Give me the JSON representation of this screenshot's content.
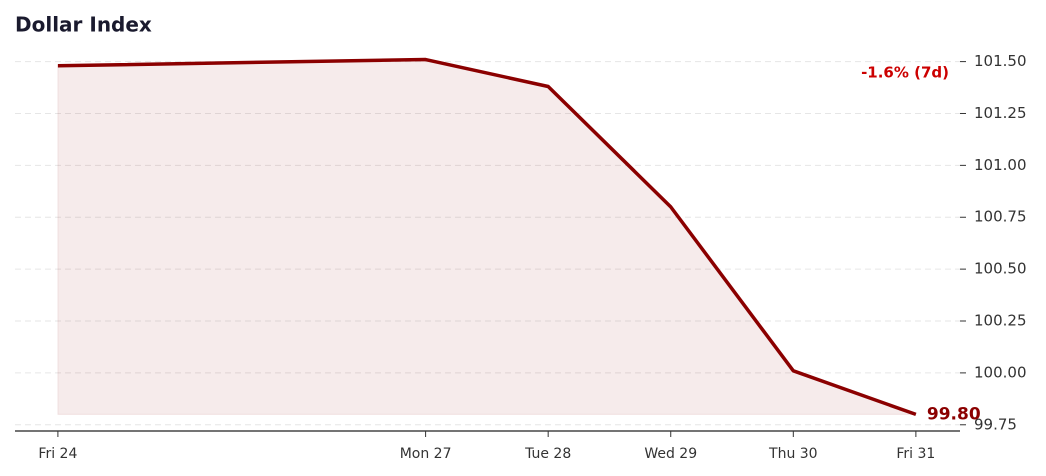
{
  "chart_data": {
    "type": "line",
    "title": "Dollar Index",
    "annotation": "-1.6% (7d)",
    "x": [
      24,
      27,
      28,
      29,
      30,
      31
    ],
    "xlim": [
      23.65,
      31.36
    ],
    "xticks": [
      {
        "value": 24,
        "label": "Fri 24"
      },
      {
        "value": 27,
        "label": "Mon 27"
      },
      {
        "value": 28,
        "label": "Tue 28"
      },
      {
        "value": 29,
        "label": "Wed 29"
      },
      {
        "value": 30,
        "label": "Thu 30"
      },
      {
        "value": 31,
        "label": "Fri 31"
      }
    ],
    "series": [
      {
        "name": "Dollar Index",
        "color": "#8b0000",
        "values": [
          101.48,
          101.51,
          101.38,
          100.8,
          100.01,
          99.8
        ],
        "value_labels": [
          null,
          null,
          null,
          null,
          null,
          "99.80"
        ]
      }
    ],
    "ylim": [
      99.72,
      101.58
    ],
    "yticks": [
      {
        "value": 99.75,
        "label": "99.75"
      },
      {
        "value": 100,
        "label": "100.00"
      },
      {
        "value": 100.25,
        "label": "100.25"
      },
      {
        "value": 100.5,
        "label": "100.50"
      },
      {
        "value": 100.75,
        "label": "100.75"
      },
      {
        "value": 101,
        "label": "101.00"
      },
      {
        "value": 101.25,
        "label": "101.25"
      },
      {
        "value": 101.5,
        "label": "101.50"
      }
    ],
    "grid": true
  }
}
